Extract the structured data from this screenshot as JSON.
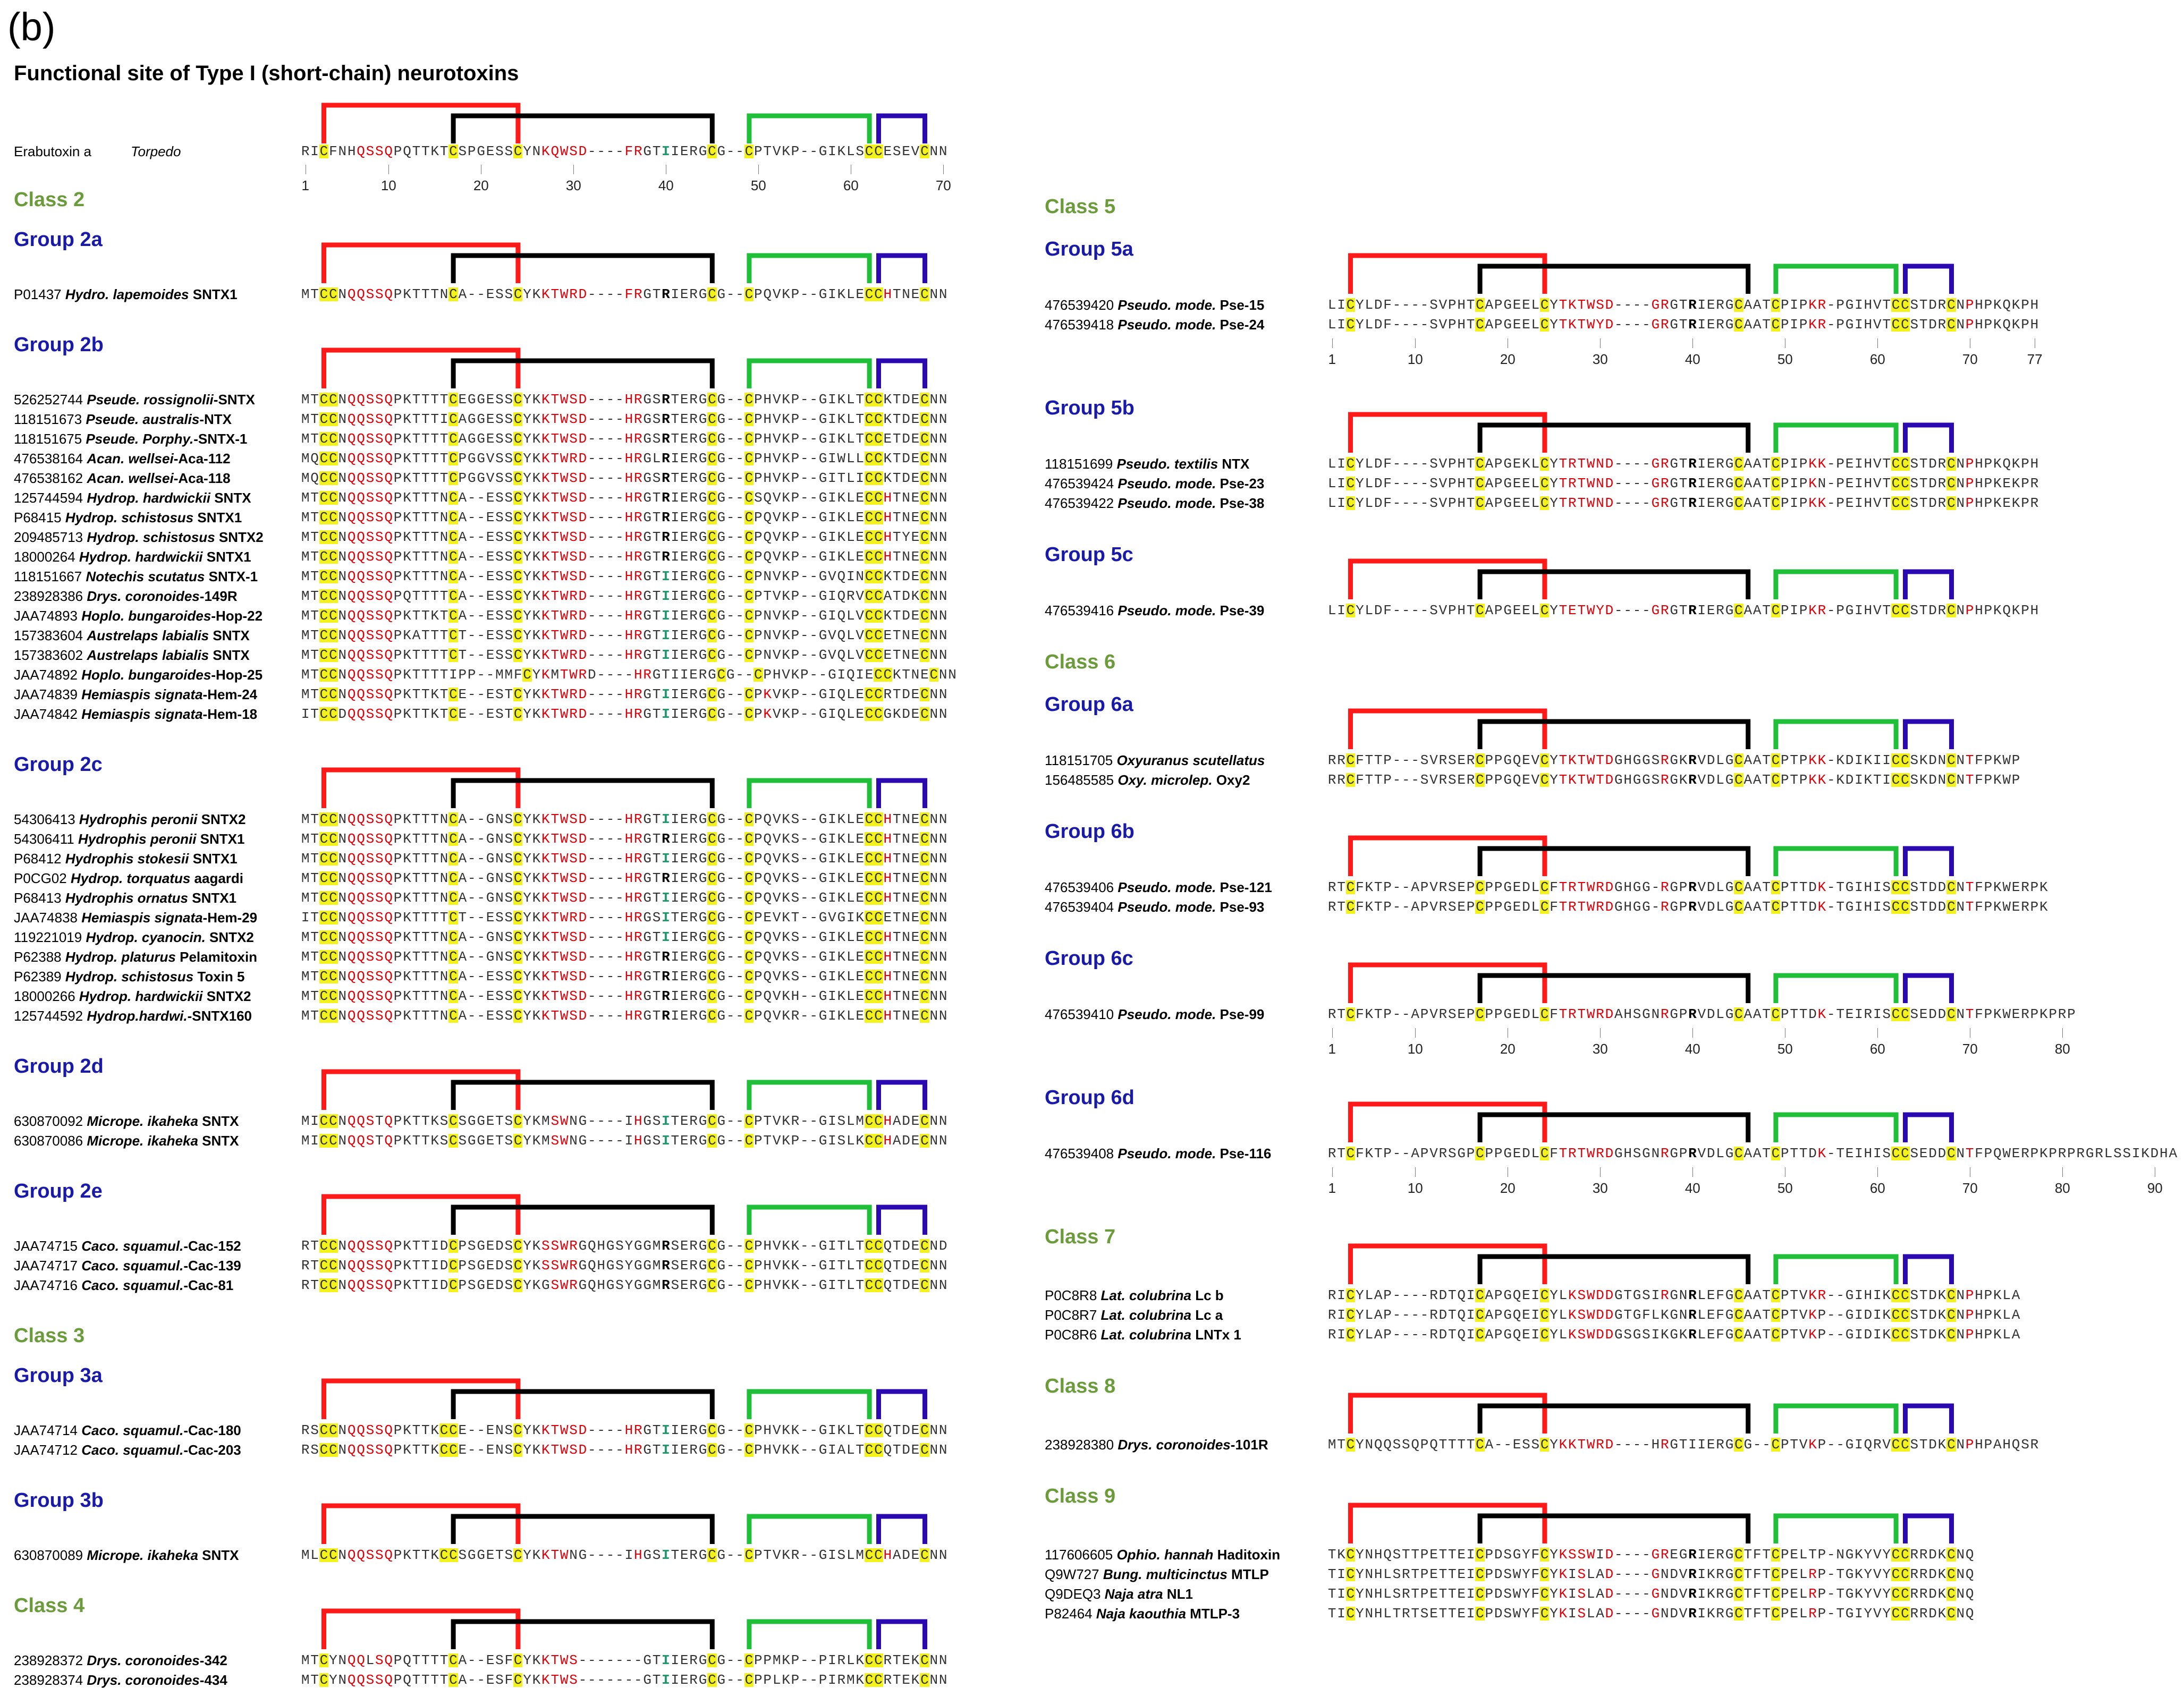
{
  "panel_label": "(b)",
  "title": "Functional site of Type I (short-chain) neurotoxins",
  "axis_ticks_70": [
    "1",
    "10",
    "20",
    "30",
    "40",
    "50",
    "60",
    "70"
  ],
  "axis_ticks_77": [
    "1",
    "10",
    "20",
    "30",
    "40",
    "50",
    "60",
    "70",
    "77"
  ],
  "axis_ticks_80": [
    "1",
    "10",
    "20",
    "30",
    "40",
    "50",
    "60",
    "70",
    "80"
  ],
  "axis_ticks_90": [
    "1",
    "10",
    "20",
    "30",
    "40",
    "50",
    "60",
    "70",
    "80",
    "90"
  ],
  "bracket_colors": {
    "loop1": "#ff1a1a",
    "loop2": "#000000",
    "loop3": "#1fbf3a",
    "loop4": "#2a0ab0"
  },
  "left_column": [
    {
      "kind": "ref",
      "id": "Erabutoxin a",
      "species": "Torpedo",
      "seq": "RICFNHQSSQPQTTKTCSPGESSCYNKQWSD----FRGTIIERGCG--CPTVKP--GIKLSCCESEVCNN",
      "axis": "70"
    },
    {
      "kind": "class",
      "label": "Class 2"
    },
    {
      "kind": "group",
      "label": "Group 2a"
    },
    {
      "kind": "rows",
      "rows": [
        {
          "id": "P01437",
          "species": "Hydro. lapemoides",
          "suffix": "SNTX1",
          "seq": "MTCCNQQSSQPKTTTNCA--ESSCYKKTWRD----FRGTRIERGCG--CPQVKP--GIKLECCHTNECNN"
        }
      ]
    },
    {
      "kind": "group",
      "label": "Group 2b"
    },
    {
      "kind": "rows",
      "rows": [
        {
          "id": "526252744",
          "species": "Pseude. rossignolii",
          "suffix": "-SNTX",
          "seq": "MTCCNQQSSQPKTTTTCEGGESSCYKKTWSD----HRGSRTERGCG--CPHVKP--GIKLTCCKTDECNN"
        },
        {
          "id": "118151673",
          "species": "Pseude. australis",
          "suffix": "-NTX",
          "seq": "MTCCNQQSSQPKTTTICAGGESSCYKKTWSD----HRGSRTERGCG--CPHVKP--GIKLTCCKTDECNN"
        },
        {
          "id": "118151675",
          "species": "Pseude. Porphy.",
          "suffix": "-SNTX-1",
          "seq": "MTCCNQQSSQPKTTTTCAGGESSCYKKTWSD----HRGSRTERGCG--CPHVKP--GIKLTCCETDECNN"
        },
        {
          "id": "476538164",
          "species": "Acan. wellsei",
          "suffix": "-Aca-112",
          "seq": "MQCCNQQSSQPKTTTTCPGGVSSCYKKTWRD----HRGLRIERGCG--CPHVKP--GIWLLCCKTDECNN"
        },
        {
          "id": "476538162",
          "species": "Acan. wellsei",
          "suffix": "-Aca-118",
          "seq": "MQCCNQQSSQPKTTTTCPGGVSSCYKKTWSD----HRGSRTERGCG--CPHVKP--GITLICCKTDECNN"
        },
        {
          "id": "125744594",
          "species": "Hydrop. hardwickii",
          "suffix": "SNTX",
          "seq": "MTCCNQQSSQPKTTTNCA--ESSCYKKTWSD----HRGTRIERGCG--CSQVKP--GIKLECCHTNECNN"
        },
        {
          "id": "P68415",
          "species": "Hydrop. schistosus",
          "suffix": "SNTX1",
          "seq": "MTCCNQQSSQPKTTTNCA--ESSCYKKTWSD----HRGTRIERGCG--CPQVKP--GIKLECCHTNECNN"
        },
        {
          "id": "209485713",
          "species": "Hydrop. schistosus",
          "suffix": "SNTX2",
          "seq": "MTCCNQQSSQPKTTTNCA--ESSCYKKTWSD----HRGTRIERGCG--CPQVKP--GIKLECCHTYECNN"
        },
        {
          "id": "18000264",
          "species": "Hydrop. hardwickii",
          "suffix": "SNTX1",
          "seq": "MTCCNQQSSQPKTTTNCA--ESSCYKKTWSD----HRGTRIERGCG--CPQVKP--GIKLECCHTNECNN"
        },
        {
          "id": "118151667",
          "species": "Notechis scutatus",
          "suffix": "SNTX-1",
          "seq": "MTCCNQQSSQPKTTTNCA--ESSCYKKTWSD----HRGTIIERGCG--CPNVKP--GVQINCCKTDECNN"
        },
        {
          "id": "238928386",
          "species": "Drys. coronoides",
          "suffix": "-149R",
          "seq": "MTCCNQQSSQPQTTTTCA--ESSCYKKTWRD----HRGTIIERGCG--CPTVKP--GIQRVCCATDKCNN"
        },
        {
          "id": "JAA74893",
          "species": "Hoplo. bungaroides",
          "suffix": "-Hop-22",
          "seq": "MTCCNQQSSQPKTTKTCA--ESSCYKKTWRD----HRGTIIERGCG--CPNVKP--GIQLVCCKTDECNN"
        },
        {
          "id": "157383604",
          "species": "Austrelaps labialis",
          "suffix": "SNTX",
          "seq": "MTCCNQQSSQPKATTTCT--ESSCYKKTWRD----HRGTIIERGCG--CPNVKP--GVQLVCCETNECNN"
        },
        {
          "id": "157383602",
          "species": "Austrelaps labialis",
          "suffix": "SNTX",
          "seq": "MTCCNQQSSQPKTTTTCT--ESSCYKKTWRD----HRGTIIERGCG--CPNVKP--GVQLVCCETNECNN"
        },
        {
          "id": "JAA74892",
          "species": "Hoplo. bungaroides",
          "suffix": "-Hop-25",
          "seq": "MTCCNQQSSQPKTTTTIPP--MMFCYKMTWRD----HRGTIIERGCG--CPHVKP--GIQIECCKTNECNN"
        },
        {
          "id": "JAA74839",
          "species": "Hemiaspis signata",
          "suffix": "-Hem-24",
          "seq": "MTCCNQQSSQPKTTKTCE--ESTCYKKTWRD----HRGTIIERGCG--CPKVKP--GIQLECCRTDECNN"
        },
        {
          "id": "JAA74842",
          "species": "Hemiaspis signata",
          "suffix": "-Hem-18",
          "seq": "ITCCDQQSSQPKTTKTCE--ESTCYKKTWRD----HRGTIIERGCG--CPKVKP--GIQLECCGKDECNN"
        }
      ]
    },
    {
      "kind": "group",
      "label": "Group 2c"
    },
    {
      "kind": "rows",
      "rows": [
        {
          "id": "54306413",
          "species": "Hydrophis peronii",
          "suffix": "SNTX2",
          "seq": "MTCCNQQSSQPKTTTNCA--GNSCYKKTWSD----HRGTIIERGCG--CPQVKS--GIKLECCHTNECNN"
        },
        {
          "id": "54306411",
          "species": "Hydrophis peronii",
          "suffix": "SNTX1",
          "seq": "MTCCNQQSSQPKTTTNCA--GNSCYKKTWSD----HRGTRIERGCG--CPQVKS--GIKLECCHTNECNN"
        },
        {
          "id": "P68412",
          "species": "Hydrophis stokesii",
          "suffix": "SNTX1",
          "seq": "MTCCNQQSSQPKTTTNCA--GNSCYKKTWSD----HRGTIIERGCG--CPQVKS--GIKLECCHTNECNN"
        },
        {
          "id": "P0CG02",
          "species": "Hydrop. torquatus",
          "suffix": "aagardi",
          "seq": "MTCCNQQSSQPKTTTNCA--GNSCYKKTWSD----HRGTRIERGCG--CPQVKS--GIKLECCHTNECNN"
        },
        {
          "id": "P68413",
          "species": "Hydrophis ornatus",
          "suffix": "SNTX1",
          "seq": "MTCCNQQSSQPKTTTNCA--GNSCYKKTWSD----HRGTIIERGCG--CPQVKS--GIKLECCHTNECNN"
        },
        {
          "id": "JAA74838",
          "species": "Hemiaspis signata",
          "suffix": "-Hem-29",
          "seq": "ITCCNQQSSQPKTTTTCT--ESSCYKKTWRD----HRGSITERGCG--CPEVKT--GVGIKCCETNECNN"
        },
        {
          "id": "119221019",
          "species": "Hydrop. cyanocin.",
          "suffix": "SNTX2",
          "seq": "MTCCNQQSSQPKTTTNCA--GNSCYKKTWSD----HRGTIIERGCG--CPQVKS--GIKLECCHTNECNN"
        },
        {
          "id": "P62388",
          "species": "Hydrop. platurus",
          "suffix": "Pelamitoxin",
          "seq": "MTCCNQQSSQPKTTTNCA--GNSCYKKTWSD----HRGTRIERGCG--CPQVKS--GIKLECCHTNECNN"
        },
        {
          "id": "P62389",
          "species": "Hydrop. schistosus",
          "suffix": "Toxin 5",
          "seq": "MTCCNQQSSQPKTTTNCA--ESSCYKKTWSD----HRGTRIERGCG--CPQVKS--GIKLECCHTNECNN"
        },
        {
          "id": "18000266",
          "species": "Hydrop. hardwickii",
          "suffix": "SNTX2",
          "seq": "MTCCNQQSSQPKTTTNCA--ESSCYKKTWSD----HRGTRIERGCG--CPQVKH--GIKLECCHTNECNN"
        },
        {
          "id": "125744592",
          "species": "Hydrop.hardwi.",
          "suffix": "-SNTX160",
          "seq": "MTCCNQQSSQPKTTTNCA--ESSCYKKTWSD----HRGTRIERGCG--CPQVKR--GIKLECCHTNECNN"
        }
      ]
    },
    {
      "kind": "group",
      "label": "Group 2d"
    },
    {
      "kind": "rows",
      "rows": [
        {
          "id": "630870092",
          "species": "Micrope. ikaheka",
          "suffix": "SNTX",
          "seq": "MICCNQQSTQPKTTKSCSGGETSCYKMSWNG----IHGSITERGCG--CPTVKR--GISLMCCHADECNN"
        },
        {
          "id": "630870086",
          "species": "Micrope. ikaheka",
          "suffix": "SNTX",
          "seq": "MICCNQQSTQPKTTKSCSGGETSCYKMSWNG----IHGSITERGCG--CPTVKP--GISLKCCHADECNN"
        }
      ]
    },
    {
      "kind": "group",
      "label": "Group 2e"
    },
    {
      "kind": "rows",
      "rows": [
        {
          "id": "JAA74715",
          "species": "Caco. squamul.",
          "suffix": "-Cac-152",
          "seq": "RTCCNQQSSQPKTTIDCPSGEDSCYKSSWRGQHGSYGGMRSERGCG--CPHVKK--GITLTCCQTDECND"
        },
        {
          "id": "JAA74717",
          "species": "Caco. squamul.",
          "suffix": "-Cac-139",
          "seq": "RTCCNQQSSQPKTTIDCPSGEDSCYKSSWRGQHGSYGGMRSERGCG--CPHVKK--GITLTCCQTDECNN"
        },
        {
          "id": "JAA74716",
          "species": "Caco. squamul.",
          "suffix": "-Cac-81",
          "seq": "RTCCNQQSSQPKTTIDCPSGEDSCYKGSWRGQHGSYGGMRSERGCG--CPHVKK--GITLTCCQTDECNN"
        }
      ]
    },
    {
      "kind": "class",
      "label": "Class 3"
    },
    {
      "kind": "group",
      "label": "Group 3a"
    },
    {
      "kind": "rows",
      "rows": [
        {
          "id": "JAA74714",
          "species": "Caco. squamul.",
          "suffix": "-Cac-180",
          "seq": "RSCCNQQSSQPKTTKCCE--ENSCYKKTWSD----HRGTIIERGCG--CPHVKK--GIKLTCCQTDECNN"
        },
        {
          "id": "JAA74712",
          "species": "Caco. squamul.",
          "suffix": "-Cac-203",
          "seq": "RSCCNQQSSQPKTTKCCE--ENSCYKKTWSD----HRGTIIERGCG--CPHVKK--GIALTCCQTDECNN"
        }
      ]
    },
    {
      "kind": "group",
      "label": "Group 3b"
    },
    {
      "kind": "rows",
      "rows": [
        {
          "id": "630870089",
          "species": "Micrope. ikaheka",
          "suffix": "SNTX",
          "seq": "MLCCNQQSSQPKTTKCCSGGETSCYKKTWNG----IHGSITERGCG--CPTVKR--GISLMCCHADECNN"
        }
      ]
    },
    {
      "kind": "class",
      "label": "Class 4"
    },
    {
      "kind": "rows",
      "rows": [
        {
          "id": "238928372",
          "species": "Drys. coronoides",
          "suffix": "-342",
          "seq": "MTCYNQQLSQPQTTTTCA--ESFCYKKTWS-------GTIIERGCG--CPPMKP--PIRLKCCRTEKCNN"
        },
        {
          "id": "238928374",
          "species": "Drys. coronoides",
          "suffix": "-434",
          "seq": "MTCYNQQSSQPQTTTTCA--ESFCYKKTWS-------GTIIERGCG--CPPLKP--PIRMKCCRTEKCNN"
        }
      ]
    }
  ],
  "right_column": [
    {
      "kind": "class",
      "label": "Class 5"
    },
    {
      "kind": "group",
      "label": "Group 5a"
    },
    {
      "kind": "rows",
      "rows": [
        {
          "id": "476539420",
          "species": "Pseudo. mode.",
          "suffix": "Pse-15",
          "seq": "LICYLDF----SVPHTCAPGEELCYTKTWSD----GRGTRIERGCAATCPIPKR-PGIHVTCCSTDRCNPHPKQKPH"
        },
        {
          "id": "476539418",
          "species": "Pseudo. mode.",
          "suffix": "Pse-24",
          "seq": "LICYLDF----SVPHTCAPGEELCYTKTWYD----GRGTRIERGCAATCPIPKR-PGIHVTCCSTDRCNPHPKQKPH"
        }
      ],
      "axis": "77"
    },
    {
      "kind": "group",
      "label": "Group 5b"
    },
    {
      "kind": "rows",
      "rows": [
        {
          "id": "118151699",
          "species": "Pseudo. textilis",
          "suffix": "NTX",
          "seq": "LICYLDF----SVPHTCAPGEKLCYTRTWND----GRGTRIERGCAATCPIPKK-PEIHVTCCSTDRCNPHPKQKPH"
        },
        {
          "id": "476539424",
          "species": "Pseudo. mode.",
          "suffix": "Pse-23",
          "seq": "LICYLDF----SVPHTCAPGEELCYTRTWND----GRGTRIERGCAATCPIPKN-PEIHVTCCSTDRCNPHPKEKPR"
        },
        {
          "id": "476539422",
          "species": "Pseudo. mode.",
          "suffix": "Pse-38",
          "seq": "LICYLDF----SVPHTCAPGEELCYTRTWND----GRGTRIERGCAATCPIPKK-PEIHVTCCSTDRCNPHPKEKPR"
        }
      ]
    },
    {
      "kind": "group",
      "label": "Group 5c"
    },
    {
      "kind": "rows",
      "rows": [
        {
          "id": "476539416",
          "species": "Pseudo. mode.",
          "suffix": "Pse-39",
          "seq": "LICYLDF----SVPHTCAPGEELCYTETWYD----GRGTRIERGCAATCPIPKR-PGIHVTCCSTDRCNPHPKQKPH"
        }
      ]
    },
    {
      "kind": "class",
      "label": "Class 6"
    },
    {
      "kind": "group",
      "label": "Group 6a"
    },
    {
      "kind": "rows",
      "rows": [
        {
          "id": "118151705",
          "species": "Oxyuranus scutellatus",
          "suffix": "",
          "seq": "RRCFTTP---SVRSERCPPGQEVCYTKTWTDGHGGSRGKRVDLGCAATCPTPKK-KDIKIICCSKDNCNTFPKWP"
        },
        {
          "id": "156485585",
          "species": "Oxy. microlep.",
          "suffix": "Oxy2",
          "seq": "RRCFTTP---SVRSERCPPGQEVCYTKTWTDGHGGSRGKRVDLGCAATCPTPKK-KDIKTICCSKDNCNTFPKWP"
        }
      ]
    },
    {
      "kind": "group",
      "label": "Group 6b"
    },
    {
      "kind": "rows",
      "rows": [
        {
          "id": "476539406",
          "species": "Pseudo. mode.",
          "suffix": "Pse-121",
          "seq": "RTCFKTP--APVRSEPCPPGEDLCFTRTWRDGHGG-RGPRVDLGCAATCPTTDK-TGIHISCCSTDDCNTFPKWERPK"
        },
        {
          "id": "476539404",
          "species": "Pseudo. mode.",
          "suffix": "Pse-93",
          "seq": "RTCFKTP--APVRSEPCPPGEDLCFTRTWRDGHGG-RGPRVDLGCAATCPTTDK-TGIHISCCSTDDCNTFPKWERPK"
        }
      ]
    },
    {
      "kind": "group",
      "label": "Group 6c"
    },
    {
      "kind": "rows",
      "rows": [
        {
          "id": "476539410",
          "species": "Pseudo. mode.",
          "suffix": "Pse-99",
          "seq": "RTCFKTP--APVRSEPCPPGEDLCFTRTWRDAHSGNRGPRVDLGCAATCPTTDK-TEIRISCCSEDDCNTFPKWERPKPRP"
        }
      ],
      "axis": "80"
    },
    {
      "kind": "group",
      "label": "Group 6d"
    },
    {
      "kind": "rows",
      "rows": [
        {
          "id": "476539408",
          "species": "Pseudo. mode.",
          "suffix": "Pse-116",
          "seq": "RTCFKTP--APVRSGPCPPGEDLCFTRTWRDGHSGNRGPRVDLGCAATCPTTDK-TEIHISCCSEDDCNTFPQWERPKPRPRGRLSSIKDHA"
        }
      ],
      "axis": "90"
    },
    {
      "kind": "class",
      "label": "Class 7"
    },
    {
      "kind": "rows",
      "rows": [
        {
          "id": "P0C8R8",
          "species": "Lat. colubrina",
          "suffix": "Lc b",
          "seq": "RICYLAP----RDTQICAPGQEICYLKSWDDGTGSIRGNRLEFGCAATCPTVKR--GIHIKCCSTDKCNPHPKLA"
        },
        {
          "id": "P0C8R7",
          "species": "Lat. colubrina",
          "suffix": "Lc a",
          "seq": "RICYLAP----RDTQICAPGQEICYLKSWDDGTGFLKGNRLEFGCAATCPTVKP--GIDIKCCSTDKCNPHPKLA"
        },
        {
          "id": "P0C8R6",
          "species": "Lat. colubrina",
          "suffix": "LNTx 1",
          "seq": "RICYLAP----RDTQICAPGQEICYLKSWDDGSGSIKGKRLEFGCAATCPTVKP--GIDIKCCSTDKCNPHPKLA"
        }
      ]
    },
    {
      "kind": "class",
      "label": "Class 8"
    },
    {
      "kind": "rows",
      "rows": [
        {
          "id": "238928380",
          "species": "Drys. coronoides",
          "suffix": "-101R",
          "seq": "MTCYNQQSSQPQTTTTCA--ESSCYKKTWRD----HRGTIIERGCG--CPTVKP--GIQRVCCSTDKCNPHPAHQSR"
        }
      ]
    },
    {
      "kind": "class",
      "label": "Class 9"
    },
    {
      "kind": "rows",
      "rows": [
        {
          "id": "117606605",
          "species": "Ophio. hannah",
          "suffix": "Haditoxin",
          "seq": "TKCYNHQSTTPETTEICPDSGYFCYKSSWID----GREGRIERGCTFTCPELTP-NGKYVYCCRRDKCNQ"
        },
        {
          "id": "Q9W727",
          "species": "Bung. multicinctus",
          "suffix": "MTLP",
          "seq": "TICYNHLSRTPETTEICPDSWYFCYKISLAD----GNDVRIKRGCTFTCPELRP-TGKYVYCCRRDKCNQ"
        },
        {
          "id": "Q9DEQ3",
          "species": "Naja atra",
          "suffix": "NL1",
          "seq": "TICYNHLSRTPETTEICPDSWYFCYKISLAD----GNDVRIKRGCTFTCPELRP-TGKYVYCCRRDKCNQ"
        },
        {
          "id": "P82464",
          "species": "Naja kaouthia",
          "suffix": "MTLP-3",
          "seq": "TICYNHLTRTSETTEICPDSWYFCYKISLAD----GNDVRIKRGCTFTCPELRP-TGIYVYCCRRDKCNQ"
        }
      ]
    }
  ]
}
